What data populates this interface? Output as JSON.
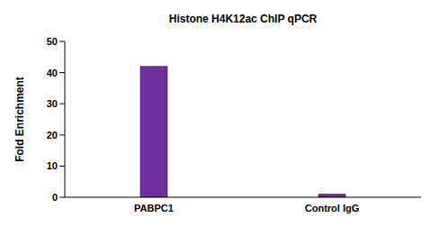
{
  "chart_data": {
    "type": "bar",
    "title": "Histone H4K12ac ChIP qPCR",
    "y_label": "Fold Enrichment",
    "categories": [
      "PABPC1",
      "Control IgG"
    ],
    "values": [
      42,
      1
    ],
    "color": "#7030a0",
    "ylim": [
      0,
      50
    ],
    "yticks": [
      0,
      10,
      20,
      30,
      40,
      50
    ],
    "grid": false
  }
}
